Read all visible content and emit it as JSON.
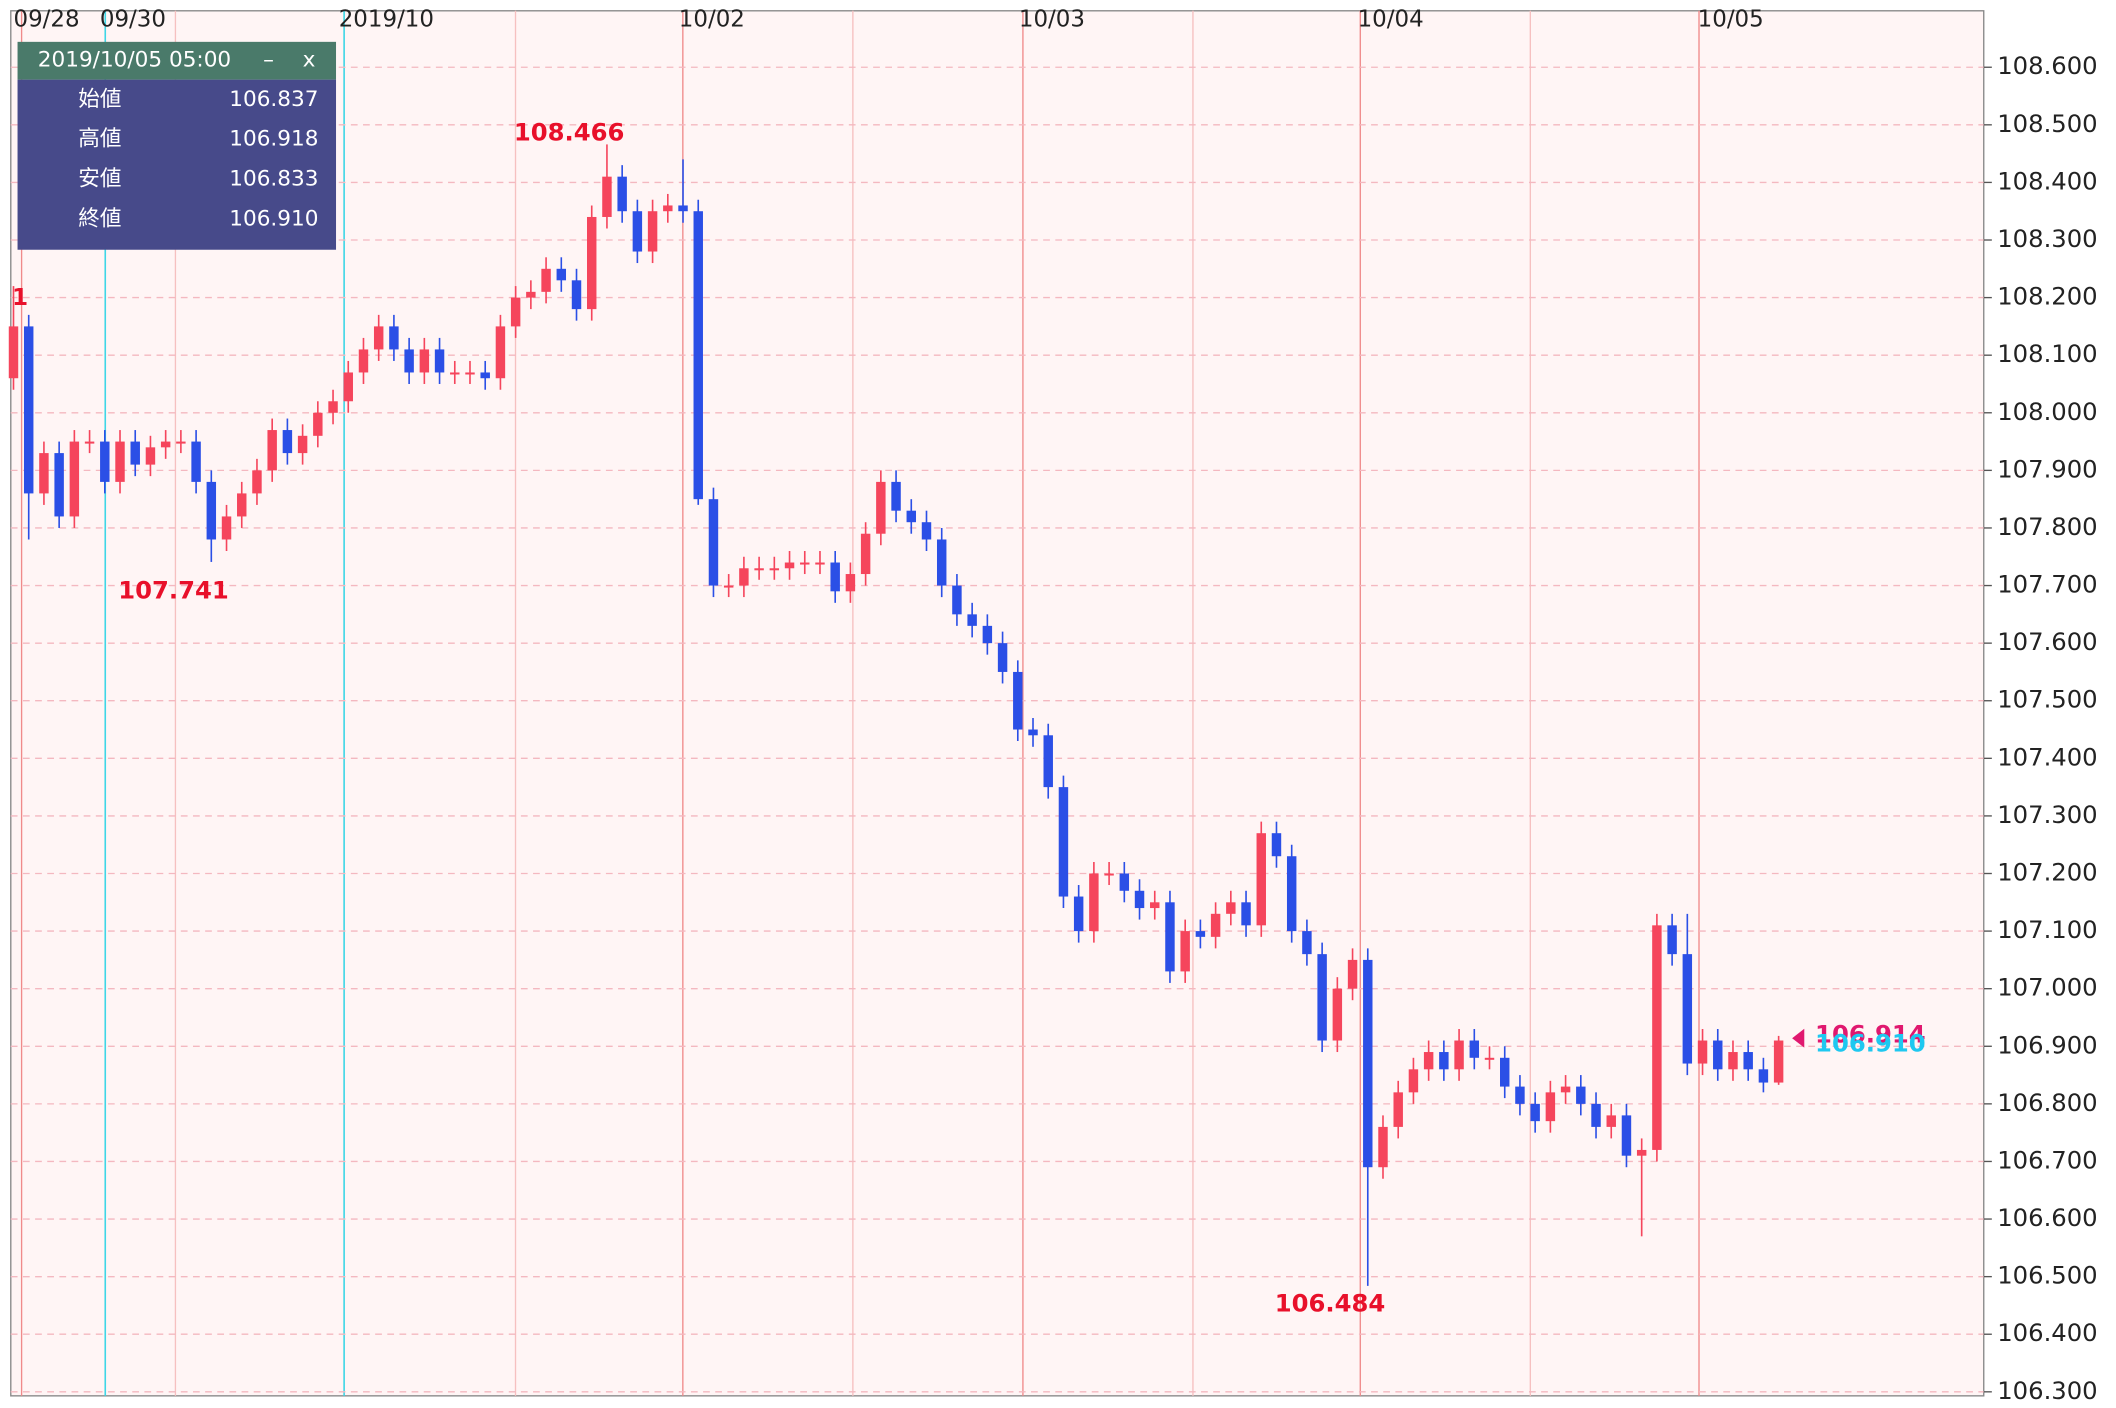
{
  "chart_data": {
    "type": "candlestick",
    "x_labels": [
      "09/28",
      "09/30",
      "2019/10",
      "10/02",
      "10/03",
      "10/04",
      "10/05"
    ],
    "edge_label": "1",
    "up_color": "#f5455c",
    "down_color": "#2b4fe6",
    "open": [
      108.06,
      108.15,
      107.86,
      107.93,
      107.82,
      107.95,
      107.95,
      107.88,
      107.95,
      107.91,
      107.94,
      107.95,
      107.95,
      107.88,
      107.78,
      107.82,
      107.86,
      107.9,
      107.97,
      107.93,
      107.96,
      108.0,
      108.02,
      108.07,
      108.11,
      108.15,
      108.11,
      108.07,
      108.11,
      108.07,
      108.07,
      108.07,
      108.06,
      108.15,
      108.2,
      108.21,
      108.25,
      108.23,
      108.18,
      108.34,
      108.41,
      108.35,
      108.28,
      108.35,
      108.36,
      108.35,
      107.85,
      107.7,
      107.7,
      107.73,
      107.73,
      107.73,
      107.74,
      107.74,
      107.74,
      107.69,
      107.72,
      107.79,
      107.88,
      107.83,
      107.81,
      107.78,
      107.7,
      107.65,
      107.63,
      107.6,
      107.55,
      107.45,
      107.44,
      107.35,
      107.16,
      107.1,
      107.2,
      107.2,
      107.17,
      107.14,
      107.15,
      107.03,
      107.1,
      107.09,
      107.13,
      107.15,
      107.11,
      107.27,
      107.23,
      107.1,
      107.06,
      106.91,
      107.0,
      107.05,
      106.69,
      106.76,
      106.82,
      106.86,
      106.89,
      106.86,
      106.91,
      106.88,
      106.88,
      106.83,
      106.8,
      106.77,
      106.82,
      106.83,
      106.8,
      106.76,
      106.78,
      106.71,
      106.72,
      107.11,
      107.06,
      106.87,
      106.91,
      106.86,
      106.89,
      106.86,
      106.837
    ],
    "high": [
      108.22,
      108.17,
      107.95,
      107.95,
      107.97,
      107.97,
      107.97,
      107.97,
      107.97,
      107.96,
      107.97,
      107.97,
      107.97,
      107.9,
      107.84,
      107.88,
      107.92,
      107.99,
      107.99,
      107.98,
      108.02,
      108.04,
      108.09,
      108.13,
      108.17,
      108.17,
      108.13,
      108.13,
      108.13,
      108.09,
      108.09,
      108.09,
      108.17,
      108.22,
      108.23,
      108.27,
      108.27,
      108.25,
      108.36,
      108.466,
      108.43,
      108.37,
      108.37,
      108.38,
      108.44,
      108.37,
      107.87,
      107.72,
      107.75,
      107.75,
      107.75,
      107.76,
      107.76,
      107.76,
      107.76,
      107.74,
      107.81,
      107.9,
      107.9,
      107.85,
      107.83,
      107.8,
      107.72,
      107.67,
      107.65,
      107.62,
      107.57,
      107.47,
      107.46,
      107.37,
      107.18,
      107.22,
      107.22,
      107.22,
      107.19,
      107.17,
      107.17,
      107.12,
      107.12,
      107.15,
      107.17,
      107.17,
      107.29,
      107.29,
      107.25,
      107.12,
      107.08,
      107.02,
      107.07,
      107.07,
      106.78,
      106.84,
      106.88,
      106.91,
      106.91,
      106.93,
      106.93,
      106.9,
      106.9,
      106.85,
      106.82,
      106.84,
      106.85,
      106.85,
      106.82,
      106.8,
      106.8,
      106.74,
      107.13,
      107.13,
      107.13,
      106.93,
      106.93,
      106.91,
      106.91,
      106.88,
      106.918
    ],
    "low": [
      108.04,
      107.78,
      107.84,
      107.8,
      107.8,
      107.93,
      107.86,
      107.86,
      107.89,
      107.89,
      107.92,
      107.93,
      107.86,
      107.741,
      107.76,
      107.8,
      107.84,
      107.88,
      107.91,
      107.91,
      107.94,
      107.98,
      108.0,
      108.05,
      108.09,
      108.09,
      108.05,
      108.05,
      108.05,
      108.05,
      108.05,
      108.04,
      108.04,
      108.13,
      108.18,
      108.19,
      108.21,
      108.16,
      108.16,
      108.32,
      108.33,
      108.26,
      108.26,
      108.33,
      108.33,
      107.84,
      107.68,
      107.68,
      107.68,
      107.71,
      107.71,
      107.71,
      107.72,
      107.72,
      107.67,
      107.67,
      107.7,
      107.77,
      107.81,
      107.79,
      107.76,
      107.68,
      107.63,
      107.61,
      107.58,
      107.53,
      107.43,
      107.42,
      107.33,
      107.14,
      107.08,
      107.08,
      107.18,
      107.15,
      107.12,
      107.12,
      107.01,
      107.01,
      107.07,
      107.07,
      107.11,
      107.09,
      107.09,
      107.21,
      107.08,
      107.04,
      106.89,
      106.89,
      106.98,
      106.484,
      106.67,
      106.74,
      106.8,
      106.84,
      106.84,
      106.84,
      106.86,
      106.86,
      106.81,
      106.78,
      106.75,
      106.75,
      106.8,
      106.78,
      106.74,
      106.74,
      106.69,
      106.57,
      106.7,
      107.04,
      106.85,
      106.85,
      106.84,
      106.84,
      106.84,
      106.82,
      106.833
    ],
    "close": [
      108.15,
      107.86,
      107.93,
      107.82,
      107.95,
      107.95,
      107.88,
      107.95,
      107.91,
      107.94,
      107.95,
      107.95,
      107.88,
      107.78,
      107.82,
      107.86,
      107.9,
      107.97,
      107.93,
      107.96,
      108.0,
      108.02,
      108.07,
      108.11,
      108.15,
      108.11,
      108.07,
      108.11,
      108.07,
      108.07,
      108.07,
      108.06,
      108.15,
      108.2,
      108.21,
      108.25,
      108.23,
      108.18,
      108.34,
      108.41,
      108.35,
      108.28,
      108.35,
      108.36,
      108.35,
      107.85,
      107.7,
      107.7,
      107.73,
      107.73,
      107.73,
      107.74,
      107.74,
      107.74,
      107.69,
      107.72,
      107.79,
      107.88,
      107.83,
      107.81,
      107.78,
      107.7,
      107.65,
      107.63,
      107.6,
      107.55,
      107.45,
      107.44,
      107.35,
      107.16,
      107.1,
      107.2,
      107.2,
      107.17,
      107.14,
      107.15,
      107.03,
      107.1,
      107.09,
      107.13,
      107.15,
      107.11,
      107.27,
      107.23,
      107.1,
      107.06,
      106.91,
      107.0,
      107.05,
      106.69,
      106.76,
      106.82,
      106.86,
      106.89,
      106.86,
      106.91,
      106.88,
      106.88,
      106.83,
      106.8,
      106.77,
      106.82,
      106.83,
      106.8,
      106.76,
      106.78,
      106.71,
      106.72,
      107.11,
      107.06,
      106.87,
      106.91,
      106.86,
      106.89,
      106.86,
      106.837,
      106.91
    ],
    "ylim": [
      106.293,
      108.698
    ],
    "yticks": [
      {
        "value": 108.6,
        "label": "108.600"
      },
      {
        "value": 108.5,
        "label": "108.500"
      },
      {
        "value": 108.4,
        "label": "108.400"
      },
      {
        "value": 108.3,
        "label": "108.300"
      },
      {
        "value": 108.2,
        "label": "108.200"
      },
      {
        "value": 108.1,
        "label": "108.100"
      },
      {
        "value": 108.0,
        "label": "108.000"
      },
      {
        "value": 107.9,
        "label": "107.900"
      },
      {
        "value": 107.8,
        "label": "107.800"
      },
      {
        "value": 107.7,
        "label": "107.700"
      },
      {
        "value": 107.6,
        "label": "107.600"
      },
      {
        "value": 107.5,
        "label": "107.500"
      },
      {
        "value": 107.4,
        "label": "107.400"
      },
      {
        "value": 107.3,
        "label": "107.300"
      },
      {
        "value": 107.2,
        "label": "107.200"
      },
      {
        "value": 107.1,
        "label": "107.100"
      },
      {
        "value": 107.0,
        "label": "107.000"
      },
      {
        "value": 106.9,
        "label": "106.900"
      },
      {
        "value": 106.8,
        "label": "106.800"
      },
      {
        "value": 106.7,
        "label": "106.700"
      },
      {
        "value": 106.6,
        "label": "106.600"
      },
      {
        "value": 106.5,
        "label": "106.500"
      },
      {
        "value": 106.4,
        "label": "106.400"
      },
      {
        "value": 106.3,
        "label": "106.300"
      }
    ],
    "grid": true,
    "price_markers": [
      {
        "value": 106.914,
        "label": "106.914",
        "color": "#e0186f"
      },
      {
        "value": 106.91,
        "label": "106.910",
        "color": "#1ec8f0"
      }
    ]
  },
  "tooltip": {
    "datetime": "2019/10/05 05:00",
    "minimize": "–",
    "close": "x",
    "rows": [
      {
        "label": "始値",
        "value": "106.837"
      },
      {
        "label": "高値",
        "value": "106.918"
      },
      {
        "label": "安値",
        "value": "106.833"
      },
      {
        "label": "終値",
        "value": "106.910"
      }
    ]
  }
}
